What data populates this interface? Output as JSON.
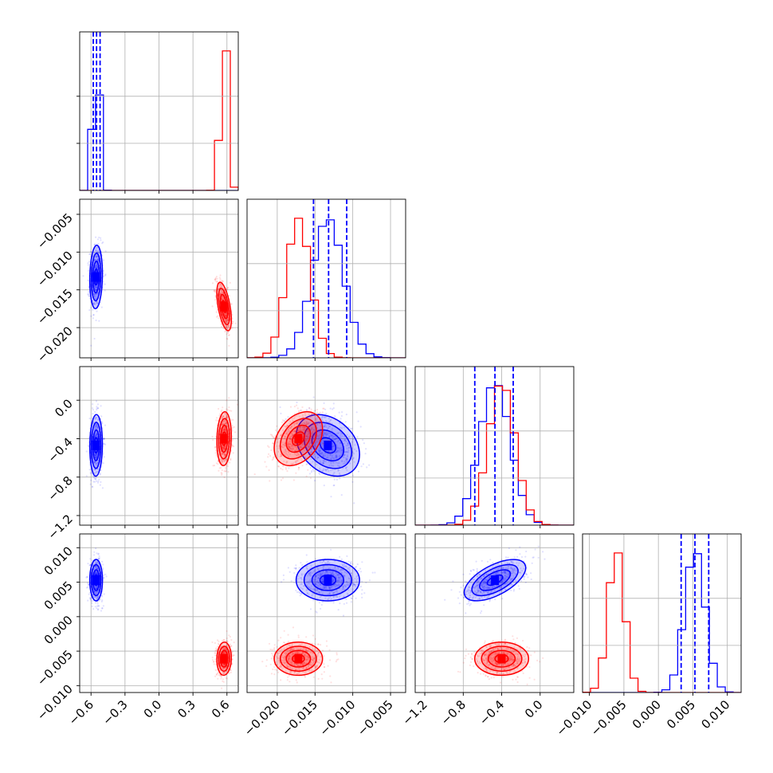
{
  "chart_data": {
    "type": "corner",
    "parameters": 4,
    "grid": true,
    "colors": {
      "series_a": "#0000ff",
      "series_b": "#ff0000"
    },
    "series": [
      {
        "color": "#0000ff",
        "means": [
          -0.555,
          -0.0133,
          -0.47,
          0.0053
        ],
        "sds": [
          0.028,
          0.0021,
          0.16,
          0.0015
        ],
        "corr01": 0.1,
        "corr02": 0.05,
        "corr03": 0.0,
        "corr12": -0.3,
        "corr13": 0.0,
        "corr23": 0.6
      },
      {
        "color": "#ff0000",
        "means": [
          0.575,
          -0.0172,
          -0.4,
          -0.0061
        ],
        "sds": [
          0.032,
          0.0016,
          0.14,
          0.0012
        ],
        "corr01": -0.55,
        "corr02": 0.1,
        "corr03": 0.05,
        "corr12": 0.35,
        "corr13": 0.0,
        "corr23": 0.0
      }
    ],
    "quantile_lines": [
      {
        "param": 0,
        "values": [
          -0.58,
          -0.551,
          -0.52
        ]
      },
      {
        "param": 1,
        "values": [
          -0.0152,
          -0.0132,
          -0.0108
        ]
      },
      {
        "param": 2,
        "values": [
          -0.68,
          -0.47,
          -0.28
        ]
      },
      {
        "param": 3,
        "values": [
          0.0033,
          0.0053,
          0.0073
        ]
      }
    ],
    "ranges": [
      [
        -0.7,
        0.7
      ],
      [
        -0.024,
        -0.003
      ],
      [
        -1.3,
        0.35
      ],
      [
        -0.011,
        0.012
      ]
    ],
    "x_ticks": [
      {
        "values": [
          -0.6,
          -0.3,
          0.0,
          0.3,
          0.6
        ],
        "labels": [
          "−0.6",
          "−0.3",
          "0.0",
          "0.3",
          "0.6"
        ]
      },
      {
        "values": [
          -0.02,
          -0.015,
          -0.01,
          -0.005
        ],
        "labels": [
          "−0.020",
          "−0.015",
          "−0.010",
          "−0.005"
        ]
      },
      {
        "values": [
          -1.2,
          -0.8,
          -0.4,
          0.0
        ],
        "labels": [
          "−1.2",
          "−0.8",
          "−0.4",
          "0.0"
        ]
      },
      {
        "values": [
          -0.01,
          -0.005,
          0.0,
          0.005,
          0.01
        ],
        "labels": [
          "−0.010",
          "−0.005",
          "0.000",
          "0.005",
          "0.010"
        ]
      }
    ],
    "y_ticks": [
      null,
      {
        "values": [
          -0.005,
          -0.01,
          -0.015,
          -0.02
        ],
        "labels": [
          "−0.005",
          "−0.010",
          "−0.015",
          "−0.020"
        ]
      },
      {
        "values": [
          0.0,
          -0.4,
          -0.8,
          -1.2
        ],
        "labels": [
          "0.0",
          "−0.4",
          "−0.8",
          "−1.2"
        ]
      },
      {
        "values": [
          0.01,
          0.005,
          0.0,
          -0.005,
          -0.01
        ],
        "labels": [
          "0.010",
          "0.005",
          "0.000",
          "−0.005",
          "−0.010"
        ]
      }
    ]
  }
}
